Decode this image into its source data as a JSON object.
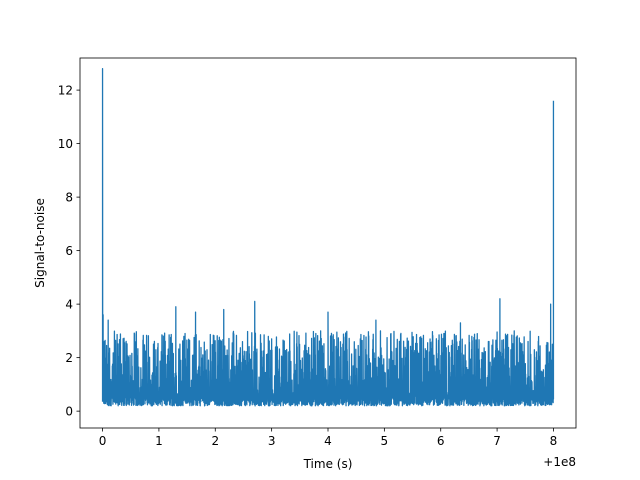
{
  "chart_data": {
    "type": "line",
    "title": "",
    "xlabel": "Time (s)",
    "ylabel": "Signal-to-noise",
    "x_offset_label": "+1e8",
    "xlim": [
      -0.4,
      8.4
    ],
    "ylim": [
      -0.63,
      13.2
    ],
    "xticks": [
      0,
      1,
      2,
      3,
      4,
      5,
      6,
      7,
      8
    ],
    "xtick_labels": [
      "0",
      "1",
      "2",
      "3",
      "4",
      "5",
      "6",
      "7",
      "8"
    ],
    "yticks": [
      0,
      2,
      4,
      6,
      8,
      10,
      12
    ],
    "ytick_labels": [
      "0",
      "2",
      "4",
      "6",
      "8",
      "10",
      "12"
    ],
    "grid": false,
    "legend": "none",
    "series": [
      {
        "color": "#1f77b4",
        "x_start": 0,
        "x_end": 8,
        "baseline_low": 0.2,
        "typical_max": 3.0,
        "x": [
          0,
          0.01,
          0.03,
          0.06,
          0.1,
          1.3,
          1.65,
          2.15,
          2.7,
          4.0,
          4.85,
          6.35,
          7.05,
          7.95,
          7.99,
          8.0
        ],
        "y": [
          12.8,
          3.6,
          2.6,
          1.5,
          3.4,
          3.9,
          3.7,
          3.8,
          4.1,
          3.7,
          3.4,
          3.3,
          4.2,
          4.0,
          2.0,
          11.6
        ]
      }
    ]
  }
}
